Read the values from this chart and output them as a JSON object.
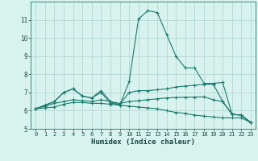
{
  "xlabel": "Humidex (Indice chaleur)",
  "xlim": [
    -0.5,
    23.5
  ],
  "ylim": [
    5,
    12
  ],
  "yticks": [
    5,
    6,
    7,
    8,
    9,
    10,
    11
  ],
  "xticks": [
    0,
    1,
    2,
    3,
    4,
    5,
    6,
    7,
    8,
    9,
    10,
    11,
    12,
    13,
    14,
    15,
    16,
    17,
    18,
    19,
    20,
    21,
    22,
    23
  ],
  "background_color": "#d8f2ee",
  "grid_color": "#b2d8d4",
  "line_color": "#1a7a6e",
  "lines": [
    {
      "x": [
        0,
        1,
        2,
        3,
        4,
        5,
        6,
        7,
        8,
        9,
        10,
        11,
        12,
        13,
        14,
        15,
        16,
        17,
        18,
        19,
        20,
        21,
        22,
        23
      ],
      "y": [
        6.1,
        6.3,
        6.5,
        7.0,
        7.2,
        6.8,
        6.7,
        7.1,
        6.5,
        6.3,
        7.6,
        11.05,
        11.5,
        11.4,
        10.2,
        9.0,
        8.35,
        8.35,
        7.5,
        7.5,
        7.55,
        5.8,
        5.75,
        5.35
      ]
    },
    {
      "x": [
        0,
        1,
        2,
        3,
        4,
        5,
        6,
        7,
        8,
        9,
        10,
        11,
        12,
        13,
        14,
        15,
        16,
        17,
        18,
        19,
        20,
        21,
        22,
        23
      ],
      "y": [
        6.1,
        6.3,
        6.5,
        7.0,
        7.2,
        6.8,
        6.7,
        7.0,
        6.4,
        6.35,
        7.0,
        7.1,
        7.1,
        7.15,
        7.2,
        7.3,
        7.35,
        7.4,
        7.45,
        7.45,
        6.5,
        5.8,
        5.75,
        5.35
      ]
    },
    {
      "x": [
        0,
        1,
        2,
        3,
        4,
        5,
        6,
        7,
        8,
        9,
        10,
        11,
        12,
        13,
        14,
        15,
        16,
        17,
        18,
        19,
        20,
        21,
        22,
        23
      ],
      "y": [
        6.1,
        6.25,
        6.4,
        6.5,
        6.6,
        6.55,
        6.5,
        6.6,
        6.5,
        6.4,
        6.5,
        6.55,
        6.6,
        6.65,
        6.7,
        6.72,
        6.74,
        6.75,
        6.76,
        6.6,
        6.5,
        5.8,
        5.75,
        5.35
      ]
    },
    {
      "x": [
        0,
        1,
        2,
        3,
        4,
        5,
        6,
        7,
        8,
        9,
        10,
        11,
        12,
        13,
        14,
        15,
        16,
        17,
        18,
        19,
        20,
        21,
        22,
        23
      ],
      "y": [
        6.1,
        6.15,
        6.2,
        6.35,
        6.45,
        6.45,
        6.4,
        6.4,
        6.35,
        6.3,
        6.25,
        6.2,
        6.15,
        6.1,
        6.0,
        5.9,
        5.85,
        5.75,
        5.7,
        5.65,
        5.6,
        5.6,
        5.6,
        5.35
      ]
    }
  ]
}
